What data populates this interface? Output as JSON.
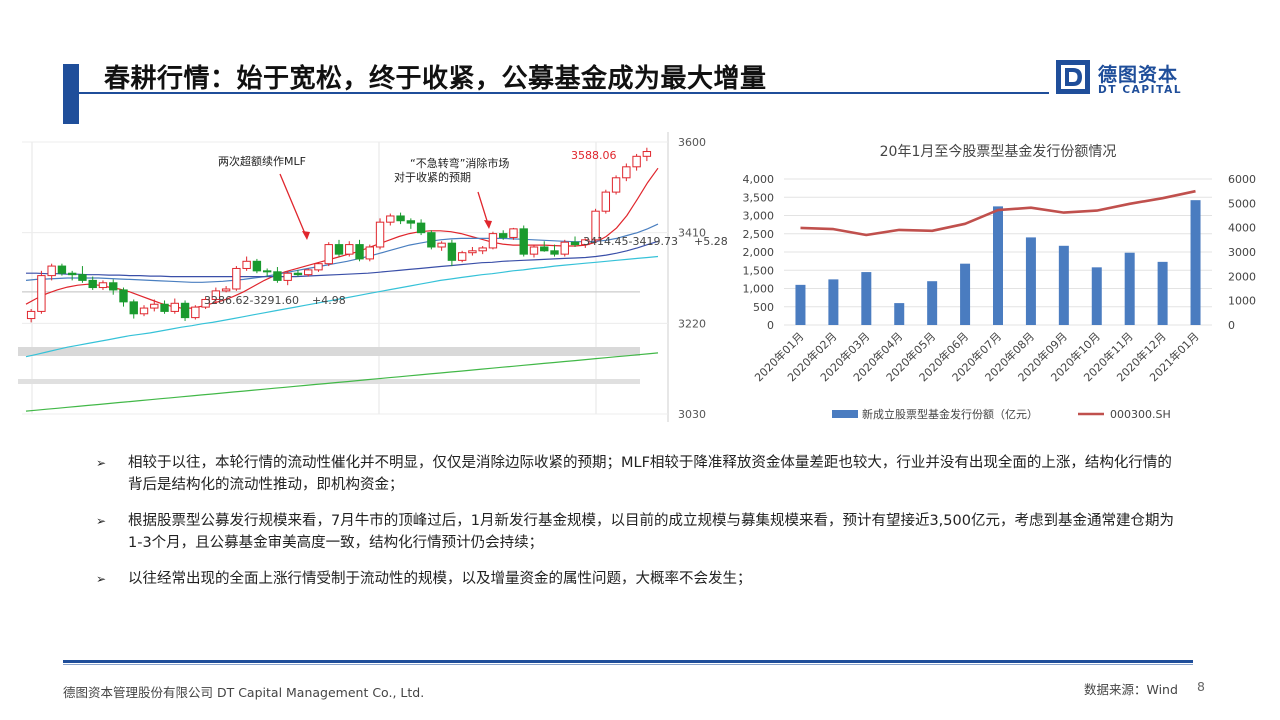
{
  "header": {
    "title": "春耕行情：始于宽松，终于收紧，公募基金成为最大增量",
    "logo_cn": "德图资本",
    "logo_en": "DT CAPITAL",
    "brand_color": "#1f4e9a"
  },
  "chart_data": [
    {
      "type": "candlestick",
      "index_label": "",
      "y_ticks": [
        3030,
        3220,
        3410,
        3600
      ],
      "ylim": [
        3030,
        3600
      ],
      "up_color": "#e0262d",
      "down_color": "#1a9a2e",
      "annotations": [
        {
          "text": "两次超额续作MLF"
        },
        {
          "text": "“不急转弯”消除市场"
        },
        {
          "text": "对于收紧的预期"
        },
        {
          "text": "3588.06"
        },
        {
          "text": "3414.45-3419.73"
        },
        {
          "text": "+5.28"
        },
        {
          "text": "3286.62-3291.60"
        },
        {
          "text": "+4.98"
        }
      ],
      "candles": [
        [
          3230,
          3250,
          3222,
          3245
        ],
        [
          3245,
          3330,
          3240,
          3320
        ],
        [
          3320,
          3345,
          3310,
          3340
        ],
        [
          3340,
          3345,
          3320,
          3325
        ],
        [
          3325,
          3330,
          3310,
          3322
        ],
        [
          3322,
          3340,
          3305,
          3310
        ],
        [
          3310,
          3318,
          3290,
          3295
        ],
        [
          3295,
          3310,
          3290,
          3305
        ],
        [
          3305,
          3312,
          3280,
          3290
        ],
        [
          3290,
          3295,
          3255,
          3265
        ],
        [
          3265,
          3270,
          3230,
          3240
        ],
        [
          3240,
          3258,
          3235,
          3252
        ],
        [
          3252,
          3270,
          3245,
          3260
        ],
        [
          3260,
          3268,
          3240,
          3245
        ],
        [
          3245,
          3272,
          3240,
          3262
        ],
        [
          3262,
          3268,
          3225,
          3232
        ],
        [
          3232,
          3258,
          3228,
          3254
        ],
        [
          3254,
          3275,
          3250,
          3270
        ],
        [
          3270,
          3295,
          3262,
          3288
        ],
        [
          3288,
          3298,
          3285,
          3292
        ],
        [
          3292,
          3340,
          3288,
          3335
        ],
        [
          3335,
          3360,
          3330,
          3350
        ],
        [
          3350,
          3355,
          3325,
          3330
        ],
        [
          3330,
          3335,
          3318,
          3328
        ],
        [
          3328,
          3338,
          3305,
          3310
        ],
        [
          3310,
          3330,
          3300,
          3325
        ],
        [
          3325,
          3332,
          3318,
          3322
        ],
        [
          3322,
          3335,
          3318,
          3332
        ],
        [
          3332,
          3348,
          3328,
          3345
        ],
        [
          3345,
          3390,
          3340,
          3385
        ],
        [
          3385,
          3395,
          3360,
          3365
        ],
        [
          3365,
          3392,
          3360,
          3385
        ],
        [
          3385,
          3395,
          3350,
          3355
        ],
        [
          3355,
          3385,
          3350,
          3380
        ],
        [
          3380,
          3440,
          3375,
          3432
        ],
        [
          3432,
          3450,
          3425,
          3445
        ],
        [
          3445,
          3452,
          3428,
          3435
        ],
        [
          3435,
          3440,
          3418,
          3430
        ],
        [
          3430,
          3438,
          3405,
          3410
        ],
        [
          3410,
          3415,
          3375,
          3380
        ],
        [
          3380,
          3392,
          3372,
          3388
        ],
        [
          3388,
          3395,
          3340,
          3352
        ],
        [
          3352,
          3372,
          3348,
          3368
        ],
        [
          3368,
          3380,
          3362,
          3372
        ],
        [
          3372,
          3382,
          3365,
          3378
        ],
        [
          3378,
          3412,
          3375,
          3408
        ],
        [
          3408,
          3415,
          3395,
          3400
        ],
        [
          3400,
          3420,
          3395,
          3418
        ],
        [
          3418,
          3425,
          3360,
          3365
        ],
        [
          3365,
          3385,
          3358,
          3380
        ],
        [
          3380,
          3392,
          3370,
          3372
        ],
        [
          3372,
          3385,
          3360,
          3365
        ],
        [
          3365,
          3395,
          3360,
          3390
        ],
        [
          3390,
          3402,
          3380,
          3385
        ],
        [
          3385,
          3398,
          3378,
          3395
        ],
        [
          3395,
          3460,
          3390,
          3455
        ],
        [
          3455,
          3500,
          3450,
          3495
        ],
        [
          3495,
          3530,
          3490,
          3525
        ],
        [
          3525,
          3555,
          3518,
          3548
        ],
        [
          3548,
          3575,
          3540,
          3570
        ],
        [
          3570,
          3588,
          3560,
          3580
        ]
      ],
      "ma_lines": [
        {
          "color": "#e0262d",
          "values": [
            3260,
            3272,
            3282,
            3290,
            3296,
            3300,
            3302,
            3300,
            3296,
            3292,
            3286,
            3278,
            3270,
            3262,
            3256,
            3252,
            3252,
            3256,
            3262,
            3268,
            3276,
            3286,
            3298,
            3310,
            3320,
            3328,
            3334,
            3340,
            3346,
            3352,
            3358,
            3364,
            3370,
            3378,
            3386,
            3394,
            3402,
            3408,
            3412,
            3414,
            3414,
            3412,
            3408,
            3402,
            3396,
            3390,
            3386,
            3384,
            3384,
            3384,
            3384,
            3383,
            3382,
            3382,
            3384,
            3390,
            3402,
            3420,
            3446,
            3480,
            3515,
            3545
          ]
        },
        {
          "color": "#4a7fc0",
          "values": [
            3310,
            3312,
            3313,
            3314,
            3315,
            3315,
            3315,
            3315,
            3314,
            3313,
            3312,
            3311,
            3310,
            3309,
            3308,
            3307,
            3306,
            3306,
            3307,
            3308,
            3310,
            3312,
            3315,
            3318,
            3322,
            3326,
            3330,
            3334,
            3338,
            3342,
            3346,
            3350,
            3355,
            3360,
            3366,
            3372,
            3378,
            3384,
            3388,
            3392,
            3395,
            3397,
            3398,
            3398,
            3398,
            3398,
            3398,
            3397,
            3396,
            3395,
            3394,
            3393,
            3392,
            3391,
            3391,
            3392,
            3394,
            3398,
            3404,
            3410,
            3418,
            3428
          ]
        },
        {
          "color": "#3a4fa8",
          "values": [
            3325,
            3325,
            3324,
            3324,
            3323,
            3323,
            3322,
            3322,
            3321,
            3321,
            3320,
            3320,
            3319,
            3319,
            3318,
            3318,
            3318,
            3318,
            3318,
            3318,
            3318,
            3318,
            3318,
            3318,
            3318,
            3318,
            3318,
            3319,
            3320,
            3321,
            3322,
            3323,
            3324,
            3325,
            3327,
            3329,
            3331,
            3333,
            3335,
            3337,
            3339,
            3341,
            3343,
            3345,
            3347,
            3348,
            3350,
            3351,
            3352,
            3353,
            3354,
            3355,
            3356,
            3357,
            3358,
            3360,
            3363,
            3367,
            3372,
            3378,
            3385,
            3392
          ]
        },
        {
          "color": "#36c2d8",
          "values": [
            3150,
            3155,
            3160,
            3165,
            3170,
            3174,
            3178,
            3182,
            3186,
            3190,
            3194,
            3197,
            3200,
            3204,
            3208,
            3212,
            3215,
            3219,
            3222,
            3226,
            3230,
            3234,
            3238,
            3242,
            3246,
            3250,
            3254,
            3258,
            3262,
            3266,
            3270,
            3274,
            3278,
            3282,
            3286,
            3290,
            3294,
            3298,
            3302,
            3306,
            3310,
            3313,
            3316,
            3319,
            3322,
            3324,
            3327,
            3330,
            3332,
            3335,
            3337,
            3340,
            3342,
            3344,
            3346,
            3348,
            3350,
            3352,
            3354,
            3356,
            3358,
            3360
          ]
        },
        {
          "color": "#42b848",
          "values": [
            3036,
            3038,
            3040,
            3042,
            3044,
            3046,
            3048,
            3050,
            3052,
            3054,
            3056,
            3058,
            3060,
            3062,
            3064,
            3066,
            3068,
            3070,
            3072,
            3074,
            3076,
            3078,
            3080,
            3082,
            3084,
            3086,
            3088,
            3090,
            3092,
            3094,
            3096,
            3098,
            3100,
            3102,
            3104,
            3106,
            3108,
            3110,
            3112,
            3114,
            3116,
            3118,
            3120,
            3122,
            3124,
            3126,
            3128,
            3130,
            3132,
            3134,
            3136,
            3138,
            3140,
            3142,
            3144,
            3146,
            3148,
            3150,
            3152,
            3154,
            3156,
            3158
          ]
        }
      ]
    },
    {
      "type": "bar+line",
      "title": "20年1月至今股票型基金发行份额情况",
      "categories": [
        "2020年01月",
        "2020年02月",
        "2020年03月",
        "2020年04月",
        "2020年05月",
        "2020年06月",
        "2020年07月",
        "2020年08月",
        "2020年09月",
        "2020年10月",
        "2020年11月",
        "2020年12月",
        "2021年01月"
      ],
      "left_axis": {
        "ticks": [
          "0",
          "500",
          "1,000",
          "1,500",
          "2,000",
          "2,500",
          "3,000",
          "3,500",
          "4,000"
        ],
        "ylim": [
          0,
          4000
        ]
      },
      "right_axis": {
        "ticks": [
          "0",
          "1000",
          "2000",
          "3000",
          "4000",
          "5000",
          "6000"
        ],
        "ylim": [
          0,
          6000
        ]
      },
      "series": [
        {
          "name": "新成立股票型基金发行份额（亿元）",
          "type": "bar",
          "color": "#4a7cc0",
          "axis": "left",
          "values": [
            1100,
            1250,
            1450,
            600,
            1200,
            1680,
            3250,
            2400,
            2170,
            1580,
            1980,
            1730,
            3420
          ]
        },
        {
          "name": "000300.SH",
          "type": "line",
          "color": "#c0504d",
          "axis": "right",
          "values": [
            3990,
            3940,
            3700,
            3910,
            3870,
            4160,
            4720,
            4820,
            4620,
            4700,
            4980,
            5210,
            5500
          ]
        }
      ]
    }
  ],
  "bullets": [
    "相较于以往，本轮行情的流动性催化并不明显，仅仅是消除边际收紧的预期；MLF相较于降准释放资金体量差距也较大，行业并没有出现全面的上涨，结构化行情的背后是结构化的流动性推动，即机构资金；",
    "根据股票型公募发行规模来看，7月牛市的顶峰过后，1月新发行基金规模，以目前的成立规模与募集规模来看，预计有望接近3,500亿元，考虑到基金通常建仓期为1-3个月，且公募基金审美高度一致，结构化行情预计仍会持续；",
    "以往经常出现的全面上涨行情受制于流动性的规模，以及增量资金的属性问题，大概率不会发生；"
  ],
  "footer": {
    "company": "德图资本管理股份有限公司  DT Capital Management  Co., Ltd.",
    "source": "数据来源：Wind",
    "page": "8"
  }
}
